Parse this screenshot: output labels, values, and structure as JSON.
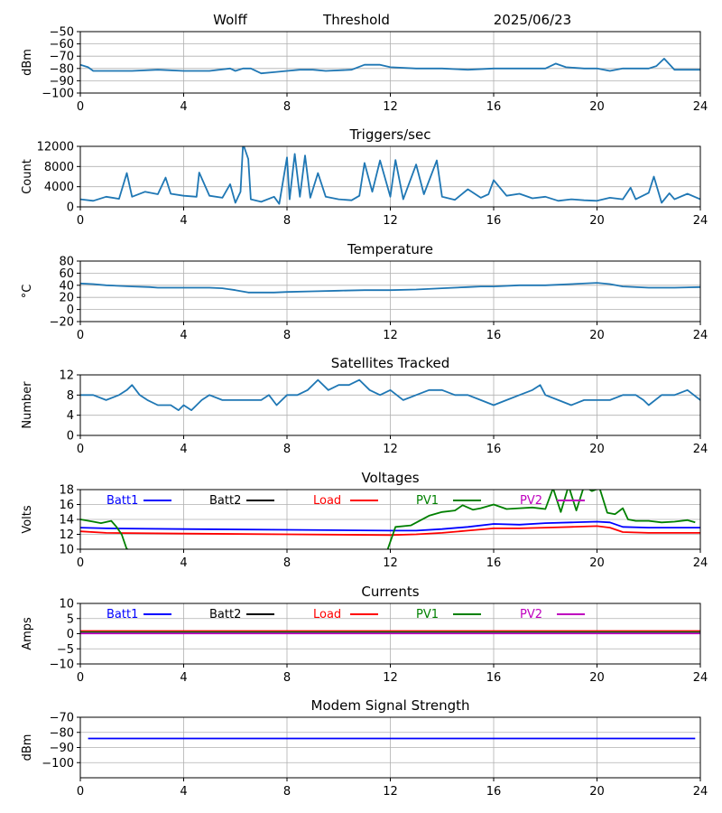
{
  "header": {
    "station": "Wolff",
    "mode": "Threshold",
    "date": "2025/06/23"
  },
  "chart_data": [
    {
      "type": "line",
      "title": "",
      "ylabel": "dBm",
      "xlim": [
        0,
        24
      ],
      "ylim": [
        -100,
        -50
      ],
      "xticks": [
        "0",
        "4",
        "8",
        "12",
        "16",
        "20",
        "24"
      ],
      "yticks": [
        "−50",
        "−60",
        "−70",
        "−80",
        "−90",
        "−100"
      ],
      "grid": true,
      "series": [
        {
          "color": "#1f77b4",
          "x": [
            0,
            0.3,
            0.5,
            1,
            2,
            3,
            4,
            5,
            5.8,
            6,
            6.3,
            6.6,
            7.0,
            7.5,
            8,
            8.5,
            9,
            9.5,
            10.5,
            11,
            11.6,
            12,
            13,
            14,
            15,
            16,
            17,
            18,
            18.4,
            18.8,
            19.5,
            20,
            20.5,
            21,
            22,
            22.3,
            22.6,
            23,
            24
          ],
          "y": [
            -77,
            -79,
            -82,
            -82,
            -82,
            -81,
            -82,
            -82,
            -80,
            -82,
            -80,
            -80,
            -84,
            -83,
            -82,
            -81,
            -81,
            -82,
            -81,
            -77,
            -77,
            -79,
            -80,
            -80,
            -81,
            -80,
            -80,
            -80,
            -76,
            -79,
            -80,
            -80,
            -82,
            -80,
            -80,
            -78,
            -72,
            -81,
            -81
          ]
        }
      ]
    },
    {
      "type": "line",
      "title": "Triggers/sec",
      "ylabel": "Count",
      "xlim": [
        0,
        24
      ],
      "ylim": [
        0,
        12000
      ],
      "xticks": [
        "0",
        "4",
        "8",
        "12",
        "16",
        "20",
        "24"
      ],
      "yticks": [
        "12000",
        "8000",
        "4000",
        "0"
      ],
      "grid": true,
      "series": [
        {
          "color": "#1f77b4",
          "x": [
            0,
            0.5,
            1,
            1.5,
            1.8,
            2,
            2.5,
            3,
            3.3,
            3.5,
            4,
            4.5,
            4.6,
            5,
            5.5,
            5.8,
            6,
            6.2,
            6.3,
            6.5,
            6.6,
            7,
            7.5,
            7.7,
            8,
            8.1,
            8.3,
            8.5,
            8.7,
            8.9,
            9.2,
            9.5,
            10,
            10.5,
            10.8,
            11,
            11.3,
            11.6,
            12,
            12.2,
            12.5,
            13,
            13.3,
            13.8,
            14,
            14.5,
            15,
            15.5,
            15.8,
            16,
            16.5,
            17,
            17.5,
            18,
            18.5,
            19,
            19.5,
            20,
            20.5,
            21,
            21.3,
            21.5,
            22,
            22.2,
            22.5,
            22.8,
            23,
            23.5,
            24
          ],
          "y": [
            1500,
            1200,
            2000,
            1600,
            6700,
            2000,
            3000,
            2500,
            5800,
            2600,
            2200,
            2000,
            6800,
            2200,
            1800,
            4500,
            800,
            3000,
            12500,
            9500,
            1500,
            1000,
            2000,
            600,
            9800,
            1500,
            10500,
            2000,
            10200,
            1800,
            6700,
            2000,
            1500,
            1300,
            2200,
            8700,
            3000,
            9200,
            2000,
            9300,
            1500,
            8400,
            2500,
            9200,
            2000,
            1400,
            3500,
            1800,
            2500,
            5300,
            2200,
            2600,
            1700,
            2000,
            1200,
            1500,
            1300,
            1200,
            1800,
            1500,
            3800,
            1500,
            2800,
            6000,
            800,
            2700,
            1500,
            2600,
            1500
          ]
        }
      ]
    },
    {
      "type": "line",
      "title": "Temperature",
      "ylabel": "°C",
      "xlim": [
        0,
        24
      ],
      "ylim": [
        -20,
        80
      ],
      "xticks": [
        "0",
        "4",
        "8",
        "12",
        "16",
        "20",
        "24"
      ],
      "yticks": [
        "80",
        "60",
        "40",
        "20",
        "0",
        "−20"
      ],
      "grid": true,
      "series": [
        {
          "color": "#1f77b4",
          "x": [
            0,
            0.5,
            1,
            2,
            2.7,
            3,
            4,
            5,
            5.5,
            6,
            6.5,
            7,
            7.5,
            8,
            9,
            10,
            11,
            12,
            13,
            14,
            15,
            15.5,
            16,
            17,
            18,
            19,
            20,
            20.5,
            21,
            22,
            23,
            24
          ],
          "y": [
            43,
            42,
            40,
            38,
            37,
            36,
            36,
            36,
            35,
            32,
            28,
            28,
            28,
            29,
            30,
            31,
            32,
            32,
            33,
            35,
            37,
            38,
            38,
            40,
            40,
            42,
            44,
            42,
            38,
            36,
            36,
            37
          ]
        }
      ]
    },
    {
      "type": "line",
      "title": "Satellites Tracked",
      "ylabel": "Number",
      "xlim": [
        0,
        24
      ],
      "ylim": [
        0,
        12
      ],
      "xticks": [
        "0",
        "4",
        "8",
        "12",
        "16",
        "20",
        "24"
      ],
      "yticks": [
        "12",
        "8",
        "4",
        "0"
      ],
      "grid": true,
      "series": [
        {
          "color": "#1f77b4",
          "x": [
            0,
            0.5,
            1,
            1.5,
            1.8,
            2,
            2.3,
            2.6,
            3,
            3.5,
            3.8,
            4,
            4.3,
            4.7,
            5,
            5.5,
            6,
            6.5,
            7,
            7.3,
            7.6,
            8,
            8.4,
            8.8,
            9.2,
            9.6,
            10,
            10.4,
            10.8,
            11.2,
            11.6,
            12,
            12.5,
            13,
            13.5,
            14,
            14.5,
            15,
            15.5,
            16,
            16.5,
            17,
            17.5,
            17.8,
            18,
            18.5,
            19,
            19.5,
            20,
            20.5,
            21,
            21.5,
            21.8,
            22,
            22.5,
            23,
            23.5,
            24
          ],
          "y": [
            8,
            8,
            7,
            8,
            9,
            10,
            8,
            7,
            6,
            6,
            5,
            6,
            5,
            7,
            8,
            7,
            7,
            7,
            7,
            8,
            6,
            8,
            8,
            9,
            11,
            9,
            10,
            10,
            11,
            9,
            8,
            9,
            7,
            8,
            9,
            9,
            8,
            8,
            7,
            6,
            7,
            8,
            9,
            10,
            8,
            7,
            6,
            7,
            7,
            7,
            8,
            8,
            7,
            6,
            8,
            8,
            9,
            7
          ]
        }
      ]
    },
    {
      "type": "line",
      "title": "Voltages",
      "ylabel": "Volts",
      "xlim": [
        0,
        24
      ],
      "ylim": [
        10,
        18
      ],
      "xticks": [
        "0",
        "4",
        "8",
        "12",
        "16",
        "20",
        "24"
      ],
      "yticks": [
        "18",
        "16",
        "14",
        "12",
        "10"
      ],
      "grid": true,
      "legend": "top",
      "series": [
        {
          "name": "Batt1",
          "color": "#0000ff",
          "x": [
            0,
            1,
            4,
            8,
            12,
            13,
            14,
            15,
            16,
            17,
            18,
            19,
            20,
            20.5,
            21,
            22,
            24
          ],
          "y": [
            12.9,
            12.8,
            12.7,
            12.6,
            12.5,
            12.5,
            12.7,
            13.0,
            13.4,
            13.3,
            13.5,
            13.6,
            13.7,
            13.6,
            13.0,
            12.9,
            12.9
          ]
        },
        {
          "name": "Batt2",
          "color": "#000000",
          "x": [],
          "y": []
        },
        {
          "name": "Load",
          "color": "#ff0000",
          "x": [
            0,
            1,
            4,
            8,
            12,
            13,
            14,
            15,
            16,
            17,
            18,
            19,
            20,
            20.5,
            21,
            22,
            24
          ],
          "y": [
            12.4,
            12.2,
            12.1,
            12.0,
            11.9,
            12.0,
            12.2,
            12.5,
            12.8,
            12.8,
            12.9,
            13.0,
            13.1,
            12.9,
            12.3,
            12.2,
            12.2
          ]
        },
        {
          "name": "PV1",
          "color": "#008000",
          "x": [
            0,
            0.5,
            0.8,
            1.2,
            1.4,
            1.6,
            1.8,
            1.85,
            null,
            11.9,
            12.2,
            12.8,
            13.5,
            14,
            14.5,
            14.8,
            15.2,
            15.5,
            16,
            16.5,
            17,
            17.5,
            18,
            18.3,
            18.6,
            18.9,
            19.2,
            19.5,
            19.8,
            20.1,
            20.4,
            20.7,
            21,
            21.2,
            21.5,
            22,
            22.5,
            23,
            23.5,
            23.8
          ],
          "y": [
            14.0,
            13.7,
            13.5,
            13.8,
            13.0,
            12.0,
            10.0,
            10.0,
            null,
            10.0,
            13.0,
            13.2,
            14.5,
            15.0,
            15.2,
            15.9,
            15.3,
            15.5,
            16.0,
            15.4,
            15.5,
            15.6,
            15.4,
            18.2,
            15.0,
            18.5,
            15.2,
            18.5,
            17.8,
            18.2,
            14.9,
            14.7,
            15.5,
            14.0,
            13.8,
            13.8,
            13.6,
            13.7,
            13.9,
            13.6
          ]
        },
        {
          "name": "PV2",
          "color": "#bf00bf",
          "x": [],
          "y": []
        }
      ]
    },
    {
      "type": "line",
      "title": "Currents",
      "ylabel": "Amps",
      "xlim": [
        0,
        24
      ],
      "ylim": [
        -10,
        10
      ],
      "xticks": [
        "0",
        "4",
        "8",
        "12",
        "16",
        "20",
        "24"
      ],
      "yticks": [
        "10",
        "5",
        "0",
        "−5",
        "−10"
      ],
      "grid": true,
      "legend": "top",
      "series": [
        {
          "name": "Batt1",
          "color": "#0000ff",
          "x": [
            0,
            24
          ],
          "y": [
            0.3,
            0.3
          ]
        },
        {
          "name": "Batt2",
          "color": "#000000",
          "x": [],
          "y": []
        },
        {
          "name": "Load",
          "color": "#ff0000",
          "x": [
            0,
            24
          ],
          "y": [
            0.9,
            0.9
          ]
        },
        {
          "name": "PV1",
          "color": "#008000",
          "x": [
            0,
            24
          ],
          "y": [
            0.5,
            0.5
          ]
        },
        {
          "name": "PV2",
          "color": "#bf00bf",
          "x": [
            0,
            24
          ],
          "y": [
            0.1,
            0.1
          ]
        }
      ]
    },
    {
      "type": "line",
      "title": "Modem Signal Strength",
      "ylabel": "dBm",
      "xlim": [
        0,
        24
      ],
      "ylim": [
        -110,
        -70
      ],
      "xticks": [
        "0",
        "4",
        "8",
        "12",
        "16",
        "20",
        "24"
      ],
      "yticks": [
        "−70",
        "−80",
        "−90",
        "−100"
      ],
      "grid": true,
      "series": [
        {
          "color": "#0000ff",
          "x": [
            0.3,
            23.8
          ],
          "y": [
            -84,
            -84
          ]
        }
      ]
    }
  ]
}
